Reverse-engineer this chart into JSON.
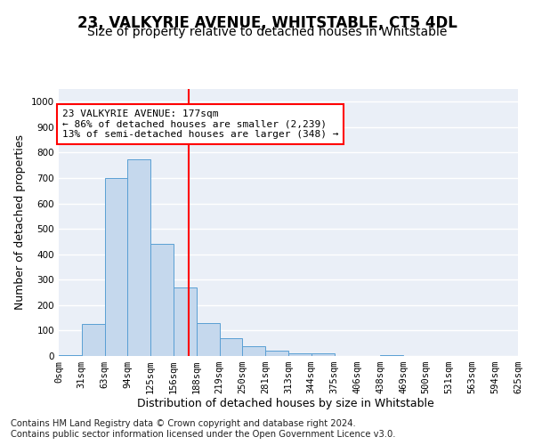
{
  "title": "23, VALKYRIE AVENUE, WHITSTABLE, CT5 4DL",
  "subtitle": "Size of property relative to detached houses in Whitstable",
  "xlabel": "Distribution of detached houses by size in Whitstable",
  "ylabel": "Number of detached properties",
  "footnote1": "Contains HM Land Registry data © Crown copyright and database right 2024.",
  "footnote2": "Contains public sector information licensed under the Open Government Licence v3.0.",
  "annotation_line1": "23 VALKYRIE AVENUE: 177sqm",
  "annotation_line2": "← 86% of detached houses are smaller (2,239)",
  "annotation_line3": "13% of semi-detached houses are larger (348) →",
  "bin_labels": [
    "0sqm",
    "31sqm",
    "63sqm",
    "94sqm",
    "125sqm",
    "156sqm",
    "188sqm",
    "219sqm",
    "250sqm",
    "281sqm",
    "313sqm",
    "344sqm",
    "375sqm",
    "406sqm",
    "438sqm",
    "469sqm",
    "500sqm",
    "531sqm",
    "563sqm",
    "594sqm",
    "625sqm"
  ],
  "bar_values": [
    5,
    125,
    700,
    775,
    440,
    270,
    130,
    70,
    40,
    22,
    12,
    12,
    0,
    0,
    5,
    0,
    0,
    0,
    0,
    0
  ],
  "bar_color": "#c5d8ed",
  "bar_edge_color": "#5a9fd4",
  "red_line_x": 5.656,
  "ylim_max": 1050,
  "yticks": [
    0,
    100,
    200,
    300,
    400,
    500,
    600,
    700,
    800,
    900,
    1000
  ],
  "background_color": "#eaeff7",
  "grid_color": "#ffffff",
  "title_fontsize": 12,
  "subtitle_fontsize": 10,
  "axis_label_fontsize": 9,
  "tick_fontsize": 7.5,
  "annotation_fontsize": 8,
  "footnote_fontsize": 7.2
}
